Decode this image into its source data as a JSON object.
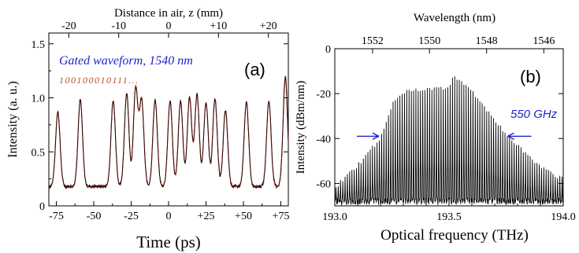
{
  "chart_data": [
    {
      "type": "line",
      "panel": "(a)",
      "xlabel": "Time (ps)",
      "ylabel": "Intensity (a. u.)",
      "x2label": "Distance in air, z (mm)",
      "xlim": [
        -80,
        80
      ],
      "ylim": [
        0,
        1.6
      ],
      "x_ticks": [
        -75,
        -50,
        -25,
        0,
        25,
        50,
        75
      ],
      "x_tick_labels": [
        "-75",
        "-50",
        "-25",
        "0",
        "+25",
        "+50",
        "+75"
      ],
      "y_ticks": [
        0,
        0.5,
        1.0,
        1.5
      ],
      "y_tick_labels": [
        "0",
        "0.5",
        "1.0",
        "1.5"
      ],
      "x2_ticks": [
        -20,
        -10,
        0,
        10,
        20
      ],
      "x2_tick_labels": [
        "-20",
        "-10",
        "0",
        "+10",
        "+20"
      ],
      "annotation_title": "Gated waveform, 1540 nm",
      "annotation_bits": "100100010111...",
      "baseline": 0.18,
      "line_colors": [
        "#3a0a0a",
        "#c0502a"
      ],
      "pulses": [
        {
          "t": -74,
          "h": 0.87
        },
        {
          "t": -59,
          "h": 0.98
        },
        {
          "t": -37,
          "h": 0.97
        },
        {
          "t": -28,
          "h": 1.04
        },
        {
          "t": -22,
          "h": 1.09
        },
        {
          "t": -18,
          "h": 0.97
        },
        {
          "t": -9,
          "h": 0.98
        },
        {
          "t": 1,
          "h": 0.97
        },
        {
          "t": 8,
          "h": 0.97
        },
        {
          "t": 14,
          "h": 1.0
        },
        {
          "t": 19,
          "h": 1.03
        },
        {
          "t": 25,
          "h": 0.96
        },
        {
          "t": 31,
          "h": 0.99
        },
        {
          "t": 38,
          "h": 0.88
        },
        {
          "t": 52,
          "h": 0.96
        },
        {
          "t": 67,
          "h": 0.97
        },
        {
          "t": 78,
          "h": 1.19
        }
      ]
    },
    {
      "type": "line",
      "panel": "(b)",
      "xlabel": "Optical frequency (THz)",
      "ylabel": "Intensity (dBm/nm)",
      "x2label": "Wavelength (nm)",
      "xlim": [
        193.0,
        194.0
      ],
      "ylim": [
        -70,
        0
      ],
      "x_ticks": [
        193.0,
        193.5,
        194.0
      ],
      "x_tick_labels": [
        "193.0",
        "193.5",
        "194.0"
      ],
      "y_ticks": [
        0,
        -20,
        -40,
        -60
      ],
      "y_tick_labels": [
        "0",
        "-20",
        "-40",
        "-60"
      ],
      "x2_ticks_nm": [
        1552,
        1550,
        1548,
        1546
      ],
      "x2_tick_labels": [
        "1552",
        "1550",
        "1548",
        "1546"
      ],
      "annotation_bandwidth": "550 GHz",
      "bandwidth_edges_THz": [
        193.2,
        193.75
      ],
      "bandwidth_level_dBm": -39,
      "comb_spacing_THz": 0.01,
      "floor_dBm": -68,
      "envelope": [
        {
          "f": 193.0,
          "v": -62
        },
        {
          "f": 193.1,
          "v": -52
        },
        {
          "f": 193.2,
          "v": -40
        },
        {
          "f": 193.25,
          "v": -25
        },
        {
          "f": 193.3,
          "v": -19
        },
        {
          "f": 193.4,
          "v": -18
        },
        {
          "f": 193.5,
          "v": -17
        },
        {
          "f": 193.52,
          "v": -12
        },
        {
          "f": 193.6,
          "v": -19
        },
        {
          "f": 193.65,
          "v": -25
        },
        {
          "f": 193.7,
          "v": -32
        },
        {
          "f": 193.8,
          "v": -43
        },
        {
          "f": 193.9,
          "v": -53
        },
        {
          "f": 194.0,
          "v": -58
        }
      ]
    }
  ]
}
